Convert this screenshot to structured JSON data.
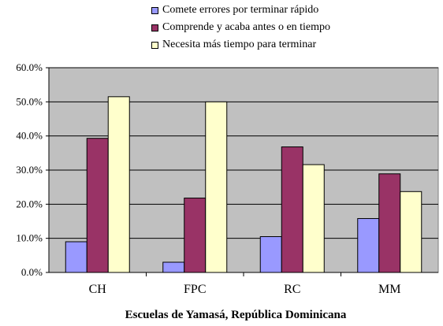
{
  "chart_data": {
    "type": "bar",
    "xlabel": "Escuelas de Yamasá, República Dominicana",
    "ylabel": "",
    "categories": [
      "CH",
      "FPC",
      "RC",
      "MM"
    ],
    "yticks": [
      "0.0%",
      "10.0%",
      "20.0%",
      "30.0%",
      "40.0%",
      "50.0%",
      "60.0%"
    ],
    "ylim": [
      0,
      60
    ],
    "grid": true,
    "legend_position": "top",
    "series": [
      {
        "name": "Comete errores por terminar rápido",
        "color": "#9999ff",
        "values": [
          9.0,
          3.0,
          10.5,
          15.8
        ]
      },
      {
        "name": "Comprende y acaba antes o en tiempo",
        "color": "#993366",
        "values": [
          39.3,
          21.8,
          36.8,
          28.9
        ]
      },
      {
        "name": "Necesita más tiempo para terminar",
        "color": "#ffffcc",
        "values": [
          51.5,
          50.0,
          31.6,
          23.7
        ]
      }
    ],
    "plot_background": "#c0c0c0"
  }
}
